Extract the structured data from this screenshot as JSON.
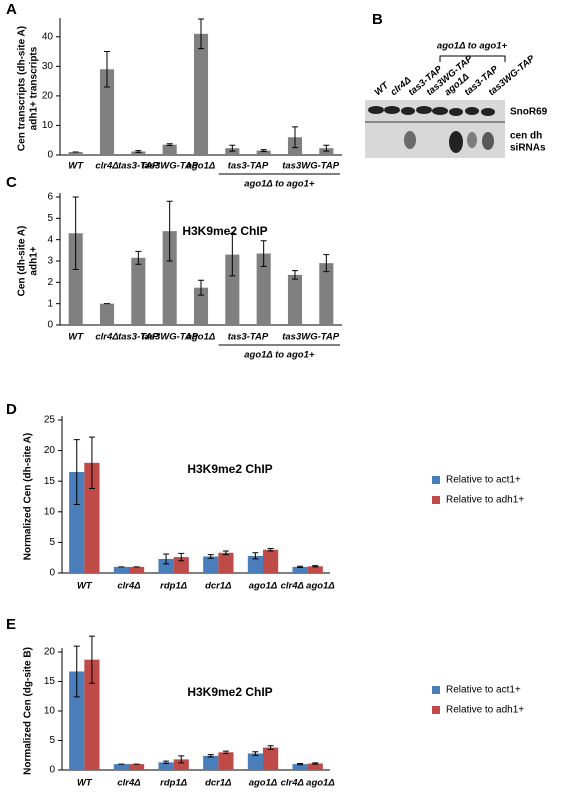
{
  "panels": [
    "A",
    "B",
    "C",
    "D",
    "E"
  ],
  "blot": {
    "title": "ago1Δ to ago1+",
    "lanes": [
      "WT",
      "clr4Δ",
      "tas3-TAP",
      "tas3WG-TAP",
      "ago1Δ",
      "tas3-TAP",
      "tas3WG-TAP"
    ],
    "bands": [
      "SnoR69",
      "cen dh",
      "siRNAs"
    ]
  },
  "chart_data": [
    {
      "type": "bar",
      "y_label": [
        "Cen transcripts (dh-site A)",
        "adh1+ transcripts"
      ],
      "categories": [
        "WT",
        "clr4Δ",
        "tas3-TAP",
        "tas3WG-TAP",
        "ago1Δ",
        null,
        null,
        null,
        null
      ],
      "values": [
        1,
        29,
        1.2,
        3.5,
        41,
        2.3,
        1.5,
        6,
        2.3
      ],
      "errors": [
        0,
        6,
        0.3,
        0.3,
        5,
        1,
        0.3,
        3.5,
        1
      ],
      "color": "#808080",
      "ylim": [
        0,
        45
      ],
      "yticks": [
        0,
        10,
        20,
        30,
        40
      ],
      "annotations": [
        "tas3-TAP",
        "tas3WG-TAP",
        "ago1Δ to ago1+"
      ]
    },
    {
      "type": "bar",
      "title": "H3K9me2 ChIP",
      "y_label": [
        "Cen (dh-site A)",
        "adh1+"
      ],
      "categories": [
        "WT",
        "clr4Δ",
        "tas3-TAP",
        "tas3WG-TAP",
        "ago1Δ",
        null,
        null,
        null,
        null
      ],
      "values": [
        4.3,
        1.0,
        3.15,
        4.4,
        1.75,
        3.3,
        3.35,
        2.35,
        2.9
      ],
      "errors": [
        1.7,
        0,
        0.3,
        1.4,
        0.35,
        1.0,
        0.6,
        0.2,
        0.4
      ],
      "color": "#808080",
      "ylim": [
        0,
        6
      ],
      "yticks": [
        0,
        1,
        2,
        3,
        4,
        5,
        6
      ],
      "annotations": [
        "tas3-TAP",
        "tas3WG-TAP",
        "ago1Δ to ago1+"
      ]
    },
    {
      "type": "bar",
      "title": "H3K9me2 ChIP",
      "y_label": [
        "Normalized Cen  (dh-site A)"
      ],
      "categories": [
        "WT",
        "clr4Δ",
        "rdp1Δ",
        "dcr1Δ",
        "ago1Δ",
        "clr4Δ ago1Δ"
      ],
      "series": [
        {
          "name": "Relative to act1+",
          "color": "#4a7ebb",
          "values": [
            16.5,
            1.0,
            2.3,
            2.7,
            2.8,
            1.0
          ],
          "errors": [
            5.3,
            0,
            0.8,
            0.3,
            0.5,
            0.1
          ]
        },
        {
          "name": "Relative to adh1+",
          "color": "#be4b48",
          "values": [
            18.0,
            1.0,
            2.6,
            3.3,
            3.8,
            1.1
          ],
          "errors": [
            4.2,
            0,
            0.6,
            0.3,
            0.2,
            0.1
          ]
        }
      ],
      "ylim": [
        0,
        25
      ],
      "yticks": [
        0,
        5,
        10,
        15,
        20,
        25
      ]
    },
    {
      "type": "bar",
      "title": "H3K9me2 ChIP",
      "y_label": [
        "Normalized Cen  (dg-site B)"
      ],
      "categories": [
        "WT",
        "clr4Δ",
        "rdp1Δ",
        "dcr1Δ",
        "ago1Δ",
        "clr4Δ ago1Δ"
      ],
      "series": [
        {
          "name": "Relative to act1+",
          "color": "#4a7ebb",
          "values": [
            16.7,
            1.0,
            1.3,
            2.4,
            2.8,
            1.0
          ],
          "errors": [
            4.3,
            0,
            0.2,
            0.2,
            0.3,
            0.1
          ]
        },
        {
          "name": "Relative to adh1+",
          "color": "#be4b48",
          "values": [
            18.7,
            1.0,
            1.8,
            3.0,
            3.8,
            1.1
          ],
          "errors": [
            4,
            0,
            0.6,
            0.2,
            0.3,
            0.1
          ]
        }
      ],
      "ylim": [
        0,
        20
      ],
      "yticks": [
        0,
        5,
        10,
        15,
        20
      ]
    }
  ]
}
